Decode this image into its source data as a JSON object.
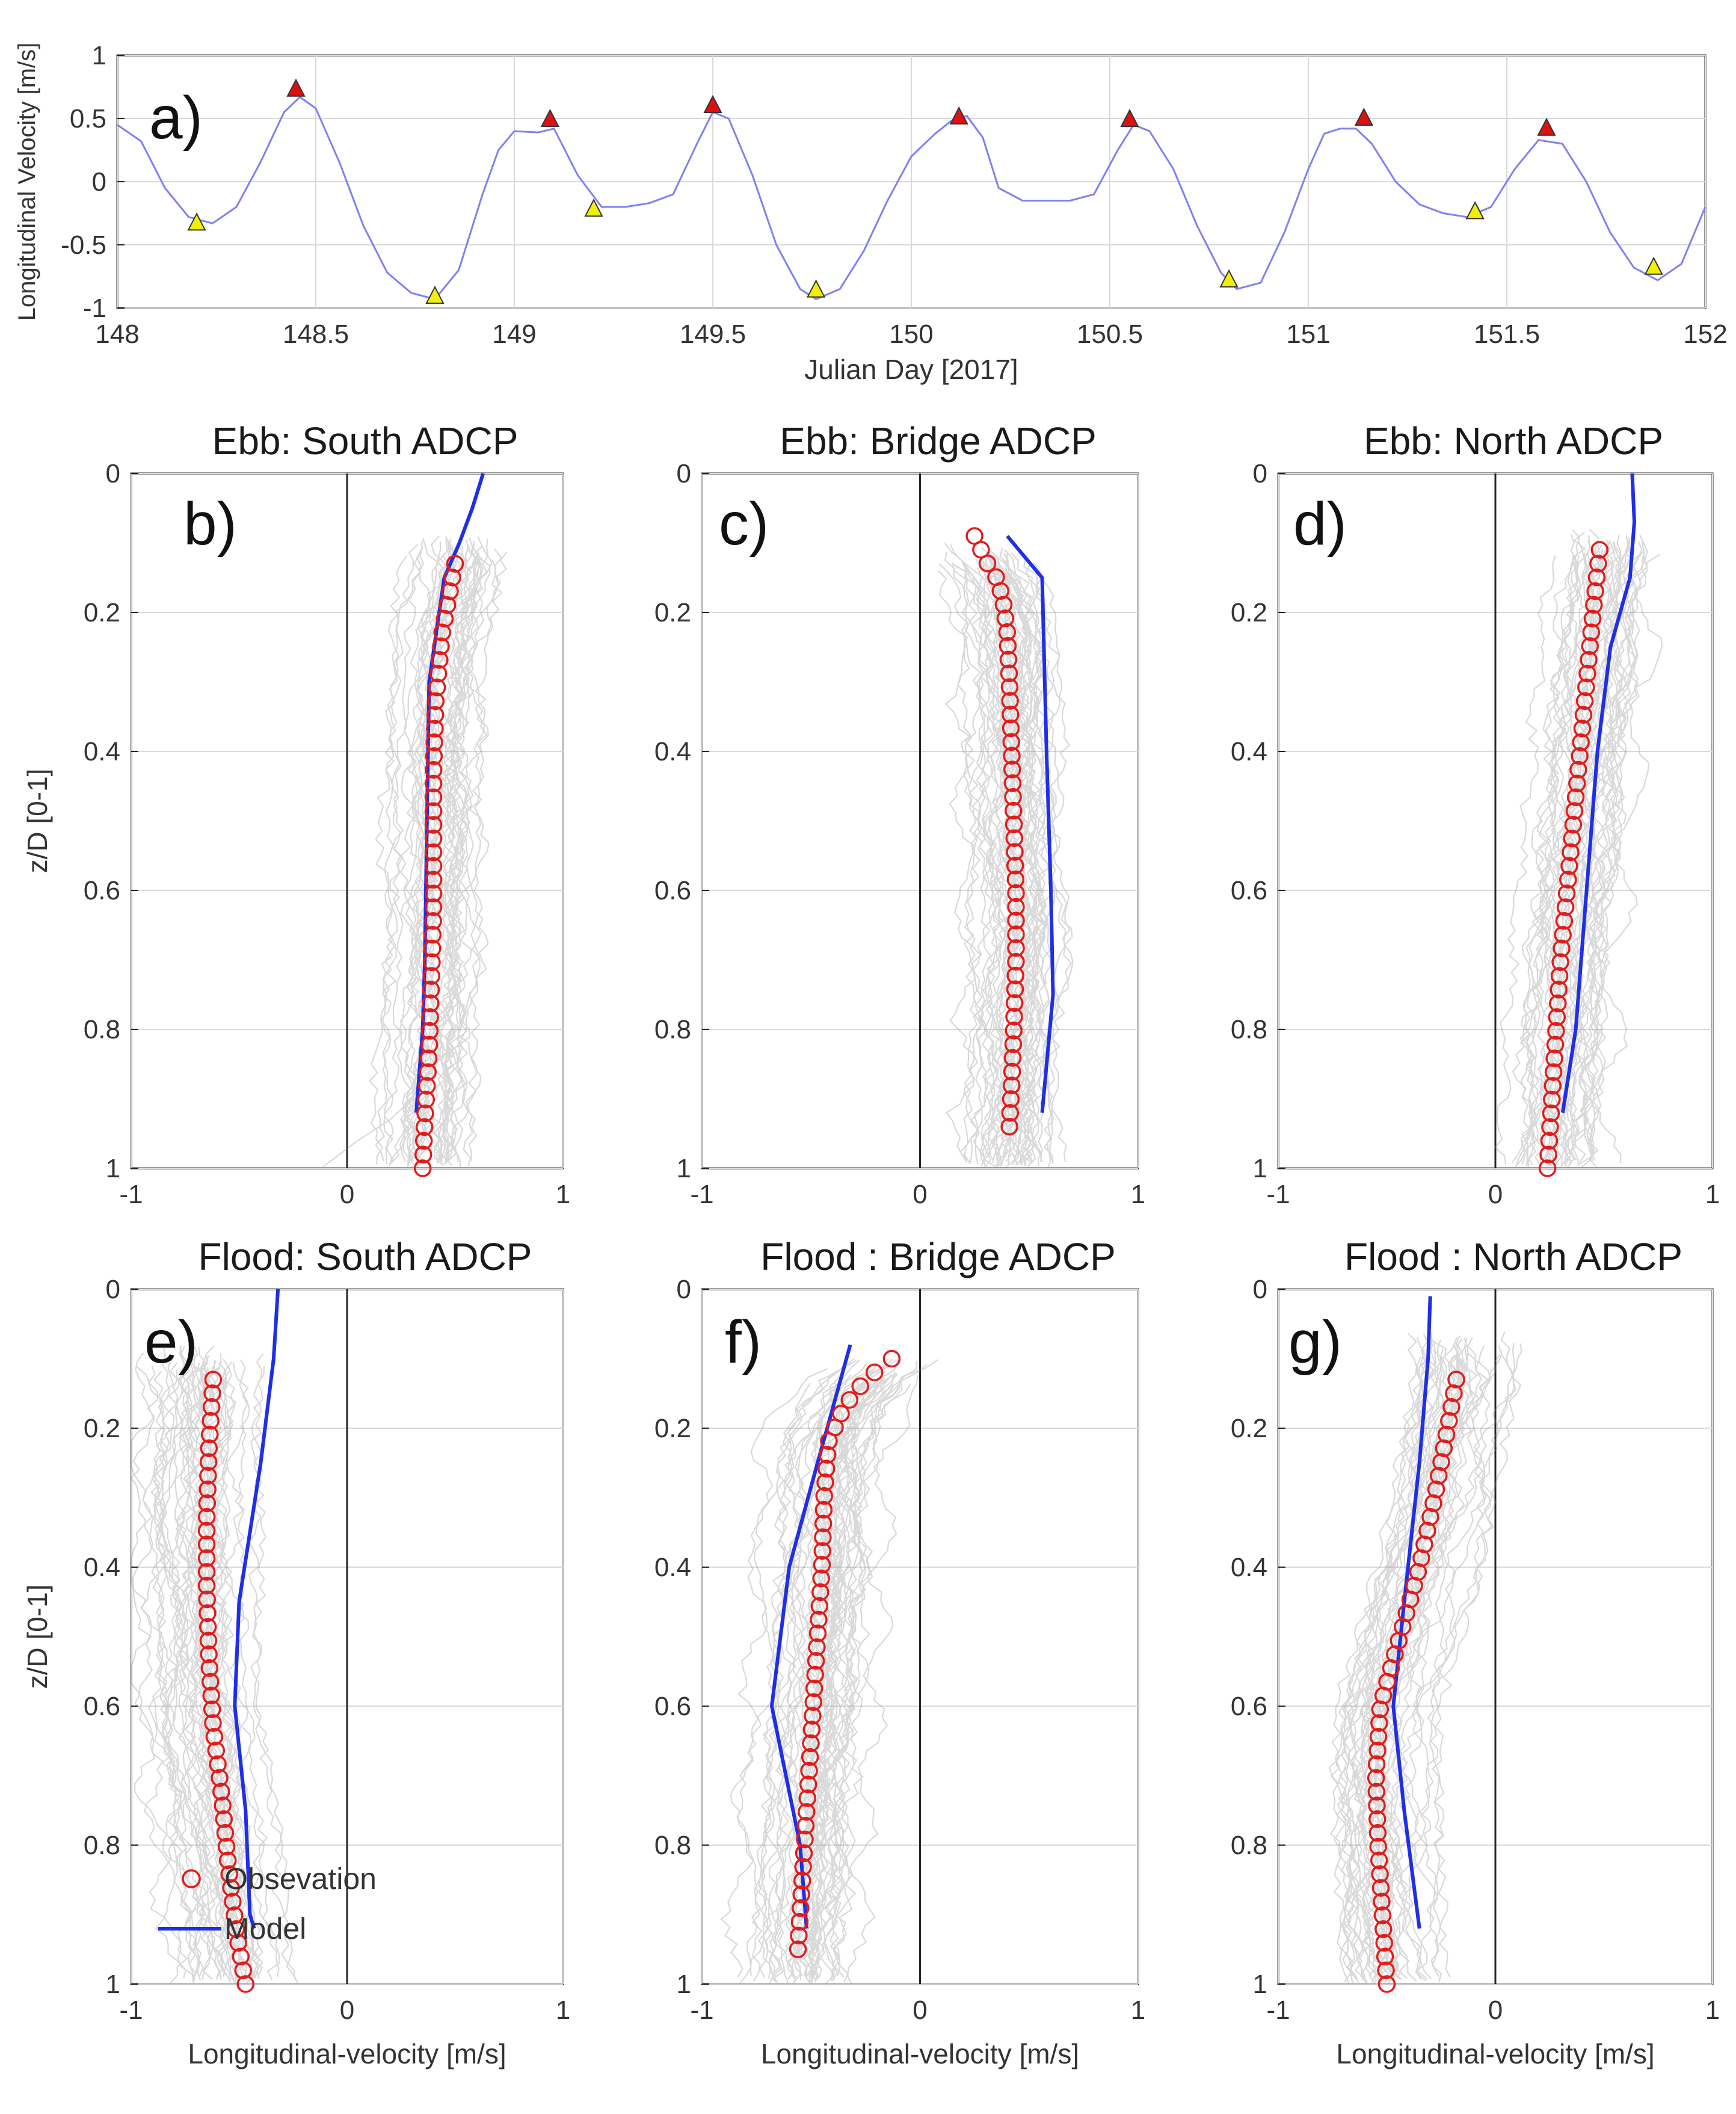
{
  "chart_data": [
    {
      "id": "a",
      "type": "line",
      "panel_label": "a)",
      "title": "",
      "xlabel": "Julian Day [2017]",
      "ylabel": "Longitudinal Velocity [m/s]",
      "xlim": [
        148,
        152
      ],
      "ylim": [
        -1,
        1
      ],
      "xticks": [
        "148",
        "148.5",
        "149",
        "149.5",
        "150",
        "150.5",
        "151",
        "151.5",
        "152"
      ],
      "yticks": [
        "1",
        "0.5",
        "0",
        "-0.5",
        "-1"
      ],
      "grid": true,
      "series": [
        {
          "name": "velocity",
          "color": "#8080f0",
          "x": [
            148.0,
            148.06,
            148.12,
            148.18,
            148.24,
            148.3,
            148.36,
            148.42,
            148.46,
            148.5,
            148.56,
            148.62,
            148.68,
            148.74,
            148.8,
            148.86,
            148.92,
            148.96,
            149.0,
            149.06,
            149.1,
            149.16,
            149.22,
            149.28,
            149.34,
            149.4,
            149.46,
            149.5,
            149.54,
            149.6,
            149.66,
            149.72,
            149.76,
            149.82,
            149.88,
            149.94,
            150.0,
            150.06,
            150.1,
            150.14,
            150.18,
            150.22,
            150.28,
            150.34,
            150.4,
            150.46,
            150.52,
            150.56,
            150.6,
            150.66,
            150.72,
            150.78,
            150.82,
            150.88,
            150.94,
            151.0,
            151.04,
            151.08,
            151.12,
            151.16,
            151.22,
            151.28,
            151.34,
            151.4,
            151.46,
            151.52,
            151.58,
            151.64,
            151.7,
            151.76,
            151.82,
            151.88,
            151.94,
            152.0
          ],
          "values": [
            0.45,
            0.32,
            -0.05,
            -0.28,
            -0.33,
            -0.2,
            0.15,
            0.55,
            0.67,
            0.58,
            0.15,
            -0.35,
            -0.72,
            -0.88,
            -0.93,
            -0.7,
            -0.1,
            0.25,
            0.4,
            0.39,
            0.42,
            0.05,
            -0.2,
            -0.2,
            -0.17,
            -0.1,
            0.3,
            0.55,
            0.5,
            0.05,
            -0.5,
            -0.85,
            -0.93,
            -0.85,
            -0.55,
            -0.15,
            0.2,
            0.38,
            0.48,
            0.52,
            0.35,
            -0.05,
            -0.15,
            -0.15,
            -0.15,
            -0.1,
            0.25,
            0.45,
            0.4,
            0.1,
            -0.35,
            -0.72,
            -0.85,
            -0.8,
            -0.4,
            0.1,
            0.38,
            0.42,
            0.42,
            0.3,
            0.0,
            -0.18,
            -0.25,
            -0.28,
            -0.2,
            0.1,
            0.33,
            0.3,
            0.0,
            -0.4,
            -0.68,
            -0.78,
            -0.65,
            -0.2
          ]
        }
      ],
      "markers": {
        "high": {
          "color": "#dd1111",
          "points": [
            [
              148.45,
              0.73
            ],
            [
              149.09,
              0.49
            ],
            [
              149.5,
              0.6
            ],
            [
              150.12,
              0.51
            ],
            [
              150.55,
              0.49
            ],
            [
              151.14,
              0.5
            ],
            [
              151.6,
              0.42
            ]
          ]
        },
        "low": {
          "color": "#f0f000",
          "points": [
            [
              148.2,
              -0.33
            ],
            [
              148.8,
              -0.91
            ],
            [
              149.2,
              -0.22
            ],
            [
              149.76,
              -0.86
            ],
            [
              150.8,
              -0.78
            ],
            [
              151.42,
              -0.24
            ],
            [
              151.87,
              -0.68
            ]
          ]
        }
      }
    },
    {
      "id": "b",
      "type": "line",
      "panel_label": "b)",
      "title": "Ebb: South ADCP",
      "xlabel": "",
      "ylabel": "z/D [0-1]",
      "xlim": [
        -1,
        1
      ],
      "ylim": [
        0,
        1
      ],
      "xticks": [
        "-1",
        "0",
        "1"
      ],
      "yticks": [
        "0",
        "0.2",
        "0.4",
        "0.6",
        "0.8",
        "1"
      ],
      "grid": true,
      "observation": {
        "name": "Observation",
        "color": "#e21b1b",
        "z": [
          0.13,
          0.23,
          0.33,
          0.43,
          0.53,
          0.63,
          0.73,
          0.83,
          0.93,
          1.0
        ],
        "values": [
          0.5,
          0.44,
          0.41,
          0.4,
          0.4,
          0.4,
          0.39,
          0.38,
          0.36,
          0.35
        ]
      },
      "model": {
        "name": "Model",
        "color": "#1f2ee8",
        "z": [
          0.0,
          0.05,
          0.1,
          0.15,
          0.3,
          0.5,
          0.7,
          0.8,
          0.92
        ],
        "values": [
          0.63,
          0.58,
          0.52,
          0.45,
          0.38,
          0.37,
          0.36,
          0.35,
          0.32
        ]
      },
      "ensemble": {
        "name": "individual profiles",
        "color": "#8a8a8a",
        "count": 38,
        "z_start": 0.09,
        "spread": 0.28,
        "bottom_tail": true
      }
    },
    {
      "id": "c",
      "type": "line",
      "panel_label": "c)",
      "title": "Ebb: Bridge ADCP",
      "xlabel": "",
      "ylabel": "",
      "xlim": [
        -1,
        1
      ],
      "ylim": [
        0,
        1
      ],
      "xticks": [
        "-1",
        "0",
        "1"
      ],
      "yticks": [
        "0",
        "0.2",
        "0.4",
        "0.6",
        "0.8",
        "1"
      ],
      "grid": true,
      "observation": {
        "name": "Observation",
        "color": "#e21b1b",
        "z": [
          0.09,
          0.11,
          0.13,
          0.15,
          0.18,
          0.23,
          0.3,
          0.4,
          0.5,
          0.6,
          0.7,
          0.8,
          0.88,
          0.94
        ],
        "values": [
          0.25,
          0.28,
          0.31,
          0.35,
          0.38,
          0.4,
          0.41,
          0.42,
          0.43,
          0.44,
          0.44,
          0.43,
          0.42,
          0.41
        ]
      },
      "model": {
        "name": "Model",
        "color": "#1f2ee8",
        "z": [
          0.09,
          0.15,
          0.4,
          0.6,
          0.75,
          0.92
        ],
        "values": [
          0.4,
          0.56,
          0.58,
          0.6,
          0.61,
          0.56
        ]
      },
      "ensemble": {
        "name": "individual profiles",
        "color": "#8a8a8a",
        "count": 44,
        "z_start": 0.1,
        "spread": 0.34,
        "bottom_tail": false
      }
    },
    {
      "id": "d",
      "type": "line",
      "panel_label": "d)",
      "title": "Ebb: North ADCP",
      "xlabel": "",
      "ylabel": "",
      "xlim": [
        -1,
        1
      ],
      "ylim": [
        0,
        1
      ],
      "xticks": [
        "-1",
        "0",
        "1"
      ],
      "yticks": [
        "0",
        "0.2",
        "0.4",
        "0.6",
        "0.8",
        "1"
      ],
      "grid": true,
      "observation": {
        "name": "Observation",
        "color": "#e21b1b",
        "z": [
          0.11,
          0.2,
          0.3,
          0.4,
          0.5,
          0.6,
          0.7,
          0.8,
          0.9,
          1.0
        ],
        "values": [
          0.48,
          0.45,
          0.42,
          0.39,
          0.36,
          0.33,
          0.3,
          0.28,
          0.26,
          0.24
        ]
      },
      "model": {
        "name": "Model",
        "color": "#1f2ee8",
        "z": [
          0.0,
          0.07,
          0.15,
          0.25,
          0.4,
          0.6,
          0.8,
          0.92
        ],
        "values": [
          0.63,
          0.64,
          0.62,
          0.53,
          0.47,
          0.42,
          0.37,
          0.31
        ]
      },
      "ensemble": {
        "name": "individual profiles",
        "color": "#8a8a8a",
        "count": 40,
        "z_start": 0.08,
        "spread": 0.33,
        "bottom_tail": false
      }
    },
    {
      "id": "e",
      "type": "line",
      "panel_label": "e)",
      "title": "Flood: South ADCP",
      "xlabel": "Longitudinal-velocity [m/s]",
      "ylabel": "z/D [0-1]",
      "xlim": [
        -1,
        1
      ],
      "ylim": [
        0,
        1
      ],
      "xticks": [
        "-1",
        "0",
        "1"
      ],
      "yticks": [
        "0",
        "0.2",
        "0.4",
        "0.6",
        "0.8",
        "1"
      ],
      "grid": true,
      "legend": {
        "location": "lower-left",
        "entries": [
          "Obsevation",
          "Model"
        ]
      },
      "observation": {
        "name": "Obsevation",
        "color": "#e21b1b",
        "z": [
          0.13,
          0.23,
          0.33,
          0.43,
          0.53,
          0.63,
          0.73,
          0.83,
          0.93,
          1.0
        ],
        "values": [
          -0.62,
          -0.64,
          -0.65,
          -0.65,
          -0.64,
          -0.62,
          -0.58,
          -0.55,
          -0.51,
          -0.47
        ]
      },
      "model": {
        "name": "Model",
        "color": "#1f2ee8",
        "z": [
          0.0,
          0.1,
          0.25,
          0.45,
          0.6,
          0.75,
          0.9,
          0.92
        ],
        "values": [
          -0.32,
          -0.34,
          -0.4,
          -0.5,
          -0.52,
          -0.47,
          -0.45,
          -0.43
        ]
      },
      "ensemble": {
        "name": "individual profiles",
        "color": "#8a8a8a",
        "count": 40,
        "z_start": 0.08,
        "spread": 0.37,
        "bottom_tail": false
      }
    },
    {
      "id": "f",
      "type": "line",
      "panel_label": "f)",
      "title": "Flood : Bridge ADCP",
      "xlabel": "Longitudinal-velocity [m/s]",
      "ylabel": "",
      "xlim": [
        -1,
        1
      ],
      "ylim": [
        0,
        1
      ],
      "xticks": [
        "-1",
        "0",
        "1"
      ],
      "yticks": [
        "0",
        "0.2",
        "0.4",
        "0.6",
        "0.8",
        "1"
      ],
      "grid": true,
      "observation": {
        "name": "Observation",
        "color": "#e21b1b",
        "z": [
          0.1,
          0.13,
          0.17,
          0.22,
          0.3,
          0.4,
          0.5,
          0.6,
          0.7,
          0.8,
          0.9,
          0.95
        ],
        "values": [
          -0.13,
          -0.25,
          -0.35,
          -0.42,
          -0.44,
          -0.45,
          -0.47,
          -0.49,
          -0.51,
          -0.53,
          -0.55,
          -0.56
        ]
      },
      "model": {
        "name": "Model",
        "color": "#1f2ee8",
        "z": [
          0.08,
          0.25,
          0.4,
          0.6,
          0.8,
          0.92
        ],
        "values": [
          -0.32,
          -0.47,
          -0.6,
          -0.68,
          -0.55,
          -0.52
        ]
      },
      "ensemble": {
        "name": "individual profiles",
        "color": "#8a8a8a",
        "count": 44,
        "z_start": 0.1,
        "spread": 0.4,
        "bottom_tail": false
      }
    },
    {
      "id": "g",
      "type": "line",
      "panel_label": "g)",
      "title": "Flood : North ADCP",
      "xlabel": "Longitudinal-velocity [m/s]",
      "ylabel": "",
      "xlim": [
        -1,
        1
      ],
      "ylim": [
        0,
        1
      ],
      "xticks": [
        "-1",
        "0",
        "1"
      ],
      "yticks": [
        "0",
        "0.2",
        "0.4",
        "0.6",
        "0.8",
        "1"
      ],
      "grid": true,
      "observation": {
        "name": "Observation",
        "color": "#e21b1b",
        "z": [
          0.13,
          0.2,
          0.3,
          0.4,
          0.5,
          0.6,
          0.7,
          0.8,
          0.9,
          1.0
        ],
        "values": [
          -0.18,
          -0.22,
          -0.28,
          -0.35,
          -0.44,
          -0.53,
          -0.55,
          -0.54,
          -0.52,
          -0.5
        ]
      },
      "model": {
        "name": "Model",
        "color": "#1f2ee8",
        "z": [
          0.01,
          0.1,
          0.25,
          0.45,
          0.6,
          0.75,
          0.92
        ],
        "values": [
          -0.3,
          -0.31,
          -0.35,
          -0.42,
          -0.47,
          -0.42,
          -0.35
        ]
      },
      "ensemble": {
        "name": "individual profiles",
        "color": "#8a8a8a",
        "count": 40,
        "z_start": 0.06,
        "spread": 0.36,
        "bottom_tail": false
      }
    }
  ]
}
